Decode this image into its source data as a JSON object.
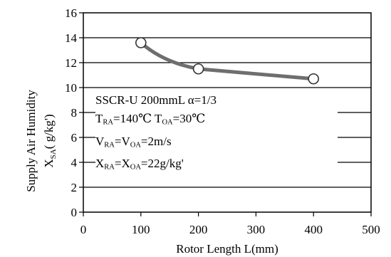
{
  "chart_data": {
    "type": "line",
    "x": [
      100,
      200,
      400
    ],
    "series": [
      {
        "values": [
          13.6,
          11.5,
          10.7
        ]
      }
    ],
    "xlim": [
      0,
      500
    ],
    "ylim": [
      0,
      16
    ],
    "x_ticks": [
      0,
      100,
      200,
      300,
      400,
      500
    ],
    "y_ticks": [
      0,
      2,
      4,
      6,
      8,
      10,
      12,
      14,
      16
    ],
    "xlabel": "Rotor Length  L(mm)",
    "ylabel_line1": "Supply Air Humidity",
    "ylabel_line2_main": "X",
    "ylabel_line2_sub": "SA",
    "ylabel_line2_unit": "( g/kg')",
    "grid": "horizontal",
    "annotations": {
      "line1": "SSCR-U  200mmL   α=1/3",
      "line2": {
        "a_main": "T",
        "a_sub": "RA",
        "a_val": "=140℃  ",
        "b_main": "T",
        "b_sub": "OA",
        "b_val": "=30℃"
      },
      "line3": {
        "a_main": "V",
        "a_sub": "RA",
        "mid": "=V",
        "b_sub": "OA",
        "b_val": "=2m/s"
      },
      "line4": {
        "a_main": "X",
        "a_sub": "RA",
        "mid": "=X",
        "b_sub": "OA",
        "b_val": "=22g/kg'"
      }
    },
    "colors": {
      "line": "#6e6e6e",
      "marker_fill": "#ffffff",
      "axis": "#000000"
    }
  }
}
